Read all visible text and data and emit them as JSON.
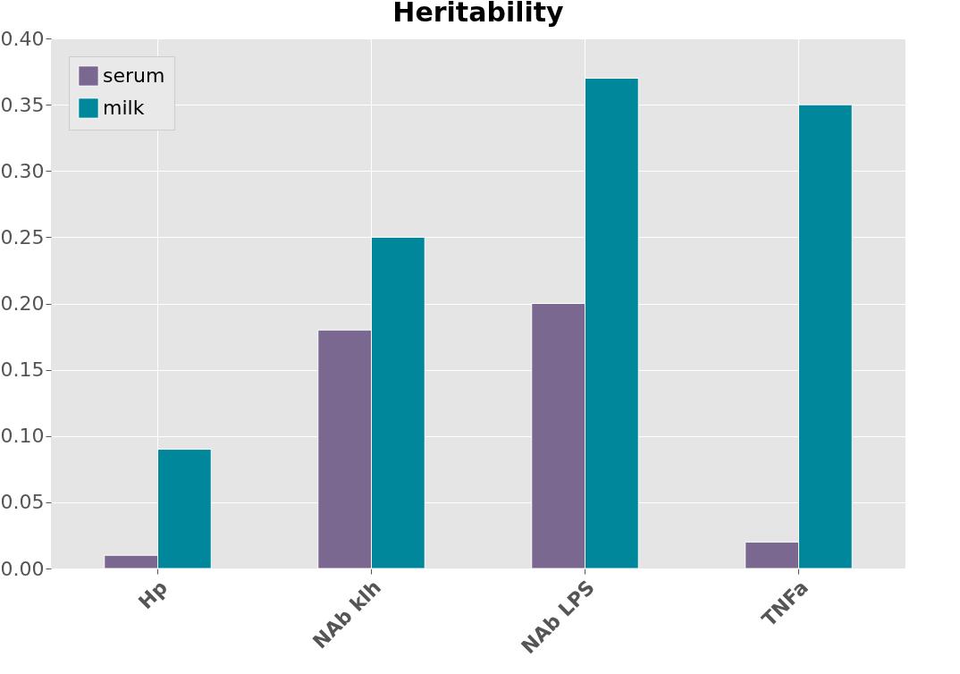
{
  "chart_data": {
    "type": "bar",
    "title": "Heritability",
    "categories": [
      "Hp",
      "NAb klh",
      "NAb LPS",
      "TNFa"
    ],
    "series": [
      {
        "name": "serum",
        "color": "#7b6890",
        "values": [
          0.01,
          0.18,
          0.2,
          0.02
        ]
      },
      {
        "name": "milk",
        "color": "#00879c",
        "values": [
          0.09,
          0.25,
          0.37,
          0.35
        ]
      }
    ],
    "ylim": [
      0,
      0.4
    ],
    "yticks": [
      {
        "value": 0,
        "label": "0.00"
      },
      {
        "value": 0.05,
        "label": "0.05"
      },
      {
        "value": 0.1,
        "label": "0.10"
      },
      {
        "value": 0.15,
        "label": "0.15"
      },
      {
        "value": 0.2,
        "label": "0.20"
      },
      {
        "value": 0.25,
        "label": "0.25"
      },
      {
        "value": 0.3,
        "label": "0.30"
      },
      {
        "value": 0.35,
        "label": "0.35"
      },
      {
        "value": 0.4,
        "label": "0.40"
      }
    ],
    "grid": true,
    "legend": "top left"
  }
}
